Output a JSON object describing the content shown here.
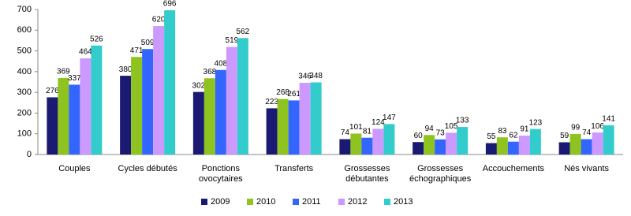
{
  "chart_data": {
    "type": "bar",
    "categories": [
      [
        "Couples"
      ],
      [
        "Cycles débutés"
      ],
      [
        "Ponctions",
        "ovocytaires"
      ],
      [
        "Transferts"
      ],
      [
        "Grossesses",
        "débutantes"
      ],
      [
        "Grossesses",
        "échographiques"
      ],
      [
        "Accouchements"
      ],
      [
        "Nés vivants"
      ]
    ],
    "series": [
      {
        "name": "2009",
        "color": "#1a1a72",
        "values": [
          276,
          380,
          302,
          223,
          74,
          60,
          55,
          59
        ]
      },
      {
        "name": "2010",
        "color": "#8fc31f",
        "values": [
          369,
          471,
          368,
          268,
          101,
          94,
          83,
          99
        ]
      },
      {
        "name": "2011",
        "color": "#3366ff",
        "values": [
          337,
          509,
          408,
          261,
          81,
          73,
          62,
          74
        ]
      },
      {
        "name": "2012",
        "color": "#cc99ff",
        "values": [
          464,
          620,
          519,
          346,
          124,
          105,
          91,
          106
        ]
      },
      {
        "name": "2013",
        "color": "#33cccc",
        "values": [
          526,
          696,
          562,
          348,
          147,
          133,
          123,
          141
        ]
      }
    ],
    "ylim": [
      0,
      700
    ],
    "yticks": [
      0,
      100,
      200,
      300,
      400,
      500,
      600,
      700
    ],
    "grid": false,
    "legend": "bottom"
  }
}
